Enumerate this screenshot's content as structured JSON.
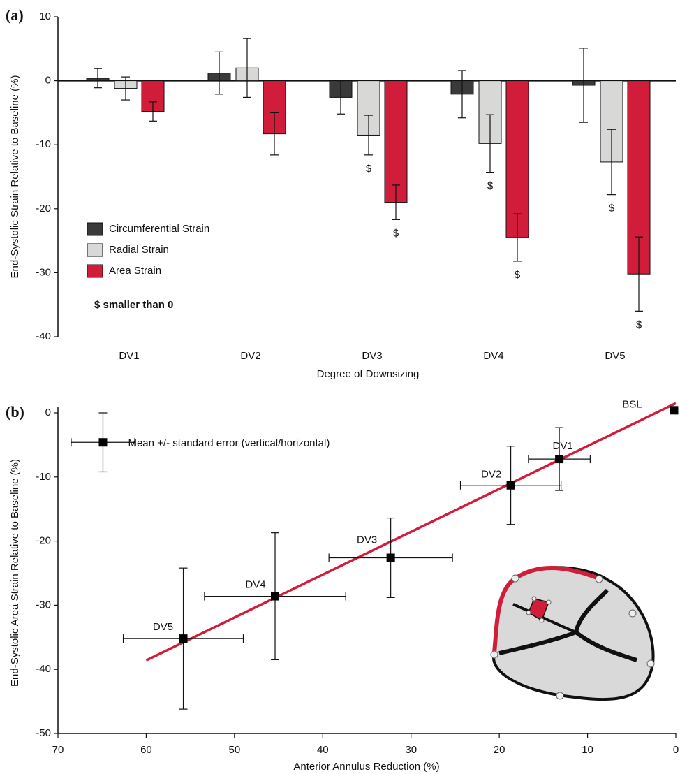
{
  "chart_data": [
    {
      "type": "bar",
      "panel_label": "(a)",
      "y_label": "End-Systolic Strain Relative to Baseline (%)",
      "x_label": "Degree of Downsizing",
      "note": "$ smaller than 0",
      "categories": [
        "DV1",
        "DV2",
        "DV3",
        "DV4",
        "DV5"
      ],
      "series": [
        {
          "name": "Circumferential Strain",
          "color": "#3a3a3a",
          "values": [
            0.4,
            1.2,
            -2.6,
            -2.1,
            -0.7
          ],
          "errors": [
            1.5,
            3.3,
            2.6,
            3.7,
            5.8
          ],
          "sig": [
            null,
            null,
            null,
            null,
            null
          ]
        },
        {
          "name": "Radial Strain",
          "color": "#d8d8d6",
          "values": [
            -1.2,
            2.0,
            -8.5,
            -9.8,
            -12.7
          ],
          "errors": [
            1.8,
            4.6,
            3.1,
            4.5,
            5.1
          ],
          "sig": [
            null,
            null,
            "$",
            "$",
            "$"
          ]
        },
        {
          "name": "Area Strain",
          "color": "#d21d3a",
          "values": [
            -4.8,
            -8.3,
            -19.0,
            -24.5,
            -30.2
          ],
          "errors": [
            1.5,
            3.3,
            2.7,
            3.7,
            5.8
          ],
          "sig": [
            null,
            null,
            "$",
            "$",
            "$"
          ]
        }
      ],
      "ylim": [
        -40,
        10
      ],
      "yticks": [
        -40,
        -30,
        -20,
        -10,
        0,
        10
      ]
    },
    {
      "type": "scatter",
      "panel_label": "(b)",
      "y_label": "End-Systolic Area Strain Relative to Baseline (%)",
      "x_label": "Anterior Annulus Reduction (%)",
      "series": [
        {
          "labels": [
            "BSL",
            "DV1",
            "DV2",
            "DV3",
            "DV4",
            "DV5"
          ],
          "color": "#000000",
          "x": [
            0.2,
            13.2,
            18.7,
            32.3,
            45.4,
            55.8
          ],
          "values": [
            0.4,
            -7.2,
            -11.3,
            -22.6,
            -28.6,
            -35.2
          ],
          "x_errors": [
            null,
            3.5,
            5.7,
            7.0,
            8.0,
            6.8
          ],
          "y_errors": [
            null,
            4.9,
            6.1,
            6.2,
            9.9,
            11.0
          ]
        }
      ],
      "legend_marker": {
        "name": "Mean +/- standard error (vertical/horizontal)",
        "x": 64.9,
        "value": -4.6,
        "x_error": 3.6,
        "y_error": 4.6
      },
      "fit": {
        "color": "#d21d3a",
        "x": [
          60,
          0
        ],
        "values": [
          -38.6,
          1.5
        ]
      },
      "xlim": [
        70,
        0
      ],
      "xticks": [
        70,
        60,
        50,
        40,
        30,
        20,
        10,
        0
      ],
      "ylim": [
        -50,
        0
      ],
      "yticks": [
        -50,
        -40,
        -30,
        -20,
        -10,
        0
      ]
    }
  ]
}
